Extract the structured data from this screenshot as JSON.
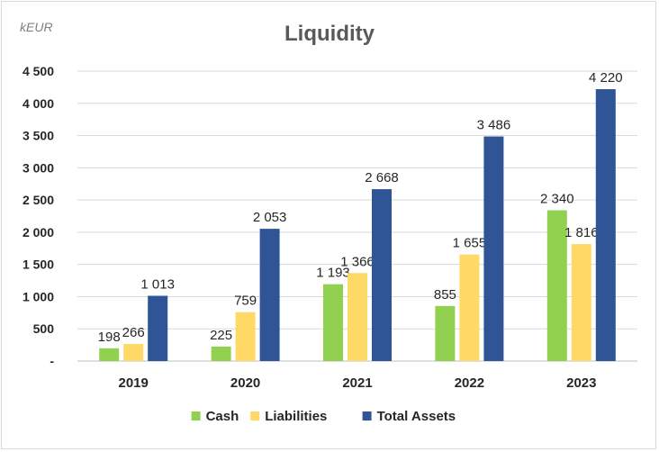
{
  "chart_data": {
    "type": "bar",
    "title": "Liquidity",
    "unit_label": "kEUR",
    "categories": [
      "2019",
      "2020",
      "2021",
      "2022",
      "2023"
    ],
    "series": [
      {
        "name": "Cash",
        "color": "#92d050",
        "values": [
          198,
          225,
          1193,
          855,
          2340
        ],
        "labels": [
          "198",
          "225",
          "1 193",
          "855",
          "2 340"
        ]
      },
      {
        "name": "Liabilities",
        "color": "#ffd966",
        "values": [
          266,
          759,
          1366,
          1655,
          1816
        ],
        "labels": [
          "266",
          "759",
          "1 366",
          "1 655",
          "1 816"
        ]
      },
      {
        "name": "Total Assets",
        "color": "#2f5597",
        "values": [
          1013,
          2053,
          2668,
          3486,
          4220
        ],
        "labels": [
          "1 013",
          "2 053",
          "2 668",
          "3 486",
          "4 220"
        ]
      }
    ],
    "yticks": [
      0,
      500,
      1000,
      1500,
      2000,
      2500,
      3000,
      3500,
      4000,
      4500
    ],
    "ytick_labels": [
      "-",
      "500",
      "1 000",
      "1 500",
      "2 000",
      "2 500",
      "3 000",
      "3 500",
      "4 000",
      "4 500"
    ],
    "ylim": [
      0,
      4500
    ],
    "grid": true,
    "legend_position": "bottom"
  }
}
